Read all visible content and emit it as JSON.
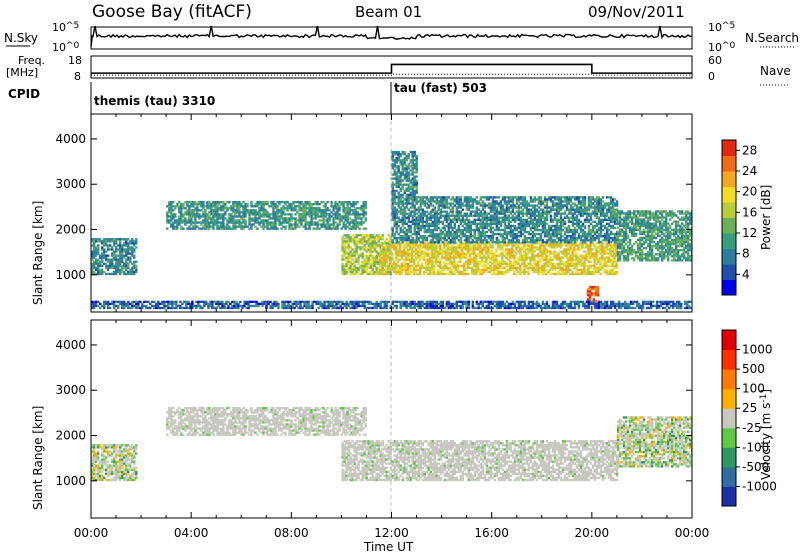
{
  "header": {
    "station": "Goose Bay (fitACF)",
    "beam": "Beam 01",
    "date": "09/Nov/2011"
  },
  "nsky_panel": {
    "left_label": "N.Sky",
    "right_label": "N.Search",
    "left_ticks": [
      {
        "base": "10",
        "exp": "^5"
      },
      {
        "base": "10",
        "exp": "^0"
      }
    ],
    "right_ticks": [
      {
        "base": "10",
        "exp": "^5"
      },
      {
        "base": "10",
        "exp": "^0"
      }
    ]
  },
  "freq_panel": {
    "left_label_1": "Freq.",
    "left_label_2": "[MHz]",
    "right_label": "Nave",
    "left_ticks": [
      "18",
      "8"
    ],
    "right_ticks": [
      "60",
      "0"
    ],
    "freq_levels_mhz": {
      "before_12ut": 9.6,
      "after_12ut_before_20ut": 14.4,
      "after_20ut": 9.6
    },
    "nave_levels": {
      "before_12ut": 3,
      "after_12ut_before_20ut": 6,
      "after_20ut": 3
    }
  },
  "cpid_panel": {
    "label": "CPID",
    "modes": [
      {
        "name": "themis (tau) 3310",
        "start_ut": 0
      },
      {
        "name": "tau (fast) 503",
        "start_ut": 12
      }
    ]
  },
  "x_axis": {
    "label": "Time UT",
    "ticks": [
      "00:00",
      "04:00",
      "08:00",
      "12:00",
      "16:00",
      "20:00",
      "00:00"
    ]
  },
  "chart_data": [
    {
      "type": "heatmap",
      "title": "",
      "xlabel": "Time UT",
      "ylabel": "Slant Range [km]",
      "xlim_hours": [
        0,
        24
      ],
      "ylim_km": [
        180,
        4550
      ],
      "y_ticks": [
        "1000",
        "2000",
        "3000",
        "4000"
      ],
      "colorbar": {
        "label": "Power [dB]",
        "ticks": [
          "4",
          "8",
          "12",
          "16",
          "20",
          "24",
          "28"
        ],
        "range": [
          0,
          30
        ],
        "colors": [
          "#0000e6",
          "#1f4fa8",
          "#2f7ea0",
          "#3c9c7e",
          "#6db05a",
          "#b9cc3a",
          "#f2dc2a",
          "#f4a722",
          "#ee6b18",
          "#e02a10"
        ]
      },
      "echo_regions": [
        {
          "t_start": 0.0,
          "t_end": 1.8,
          "r_min": 1000,
          "r_max": 1800,
          "value": 9
        },
        {
          "t_start": 3.0,
          "t_end": 11.0,
          "r_min": 2000,
          "r_max": 2600,
          "value": 10
        },
        {
          "t_start": 10.0,
          "t_end": 12.0,
          "r_min": 1000,
          "r_max": 1900,
          "value": 16
        },
        {
          "t_start": 11.5,
          "t_end": 21.0,
          "r_min": 1000,
          "r_max": 1700,
          "value": 19
        },
        {
          "t_start": 12.0,
          "t_end": 21.0,
          "r_min": 1700,
          "r_max": 2700,
          "value": 9
        },
        {
          "t_start": 21.0,
          "t_end": 24.0,
          "r_min": 1300,
          "r_max": 2400,
          "value": 11
        },
        {
          "t_start": 12.0,
          "t_end": 13.0,
          "r_min": 2700,
          "r_max": 3700,
          "value": 9
        },
        {
          "t_start": 19.8,
          "t_end": 20.2,
          "r_min": 350,
          "r_max": 750,
          "value": 26
        },
        {
          "t_start": 0.0,
          "t_end": 24.0,
          "r_min": 250,
          "r_max": 400,
          "value": 6
        }
      ]
    },
    {
      "type": "heatmap",
      "title": "",
      "xlabel": "Time UT",
      "ylabel": "Slant Range [km]",
      "xlim_hours": [
        0,
        24
      ],
      "ylim_km": [
        180,
        4550
      ],
      "y_ticks": [
        "1000",
        "2000",
        "3000",
        "4000"
      ],
      "colorbar": {
        "label": "Velocity [m s^-1]",
        "ticks": [
          "1000",
          "500",
          "100",
          "25",
          "-25",
          "-100",
          "-500",
          "-1000"
        ],
        "colors": [
          "#1a2fa0",
          "#2f6fa0",
          "#2f9860",
          "#5fc848",
          "#c8c8c0",
          "#ffb000",
          "#ff7a00",
          "#ff3000",
          "#e00000"
        ]
      },
      "echo_regions": [
        {
          "t_start": 0.0,
          "t_end": 1.8,
          "r_min": 1000,
          "r_max": 1800,
          "value": "mixed"
        },
        {
          "t_start": 3.0,
          "t_end": 11.0,
          "r_min": 2000,
          "r_max": 2600,
          "value": "ground scatter"
        },
        {
          "t_start": 10.0,
          "t_end": 21.0,
          "r_min": 1000,
          "r_max": 1900,
          "value": "ground scatter"
        },
        {
          "t_start": 21.0,
          "t_end": 24.0,
          "r_min": 1300,
          "r_max": 2400,
          "value": "mixed"
        }
      ]
    }
  ]
}
